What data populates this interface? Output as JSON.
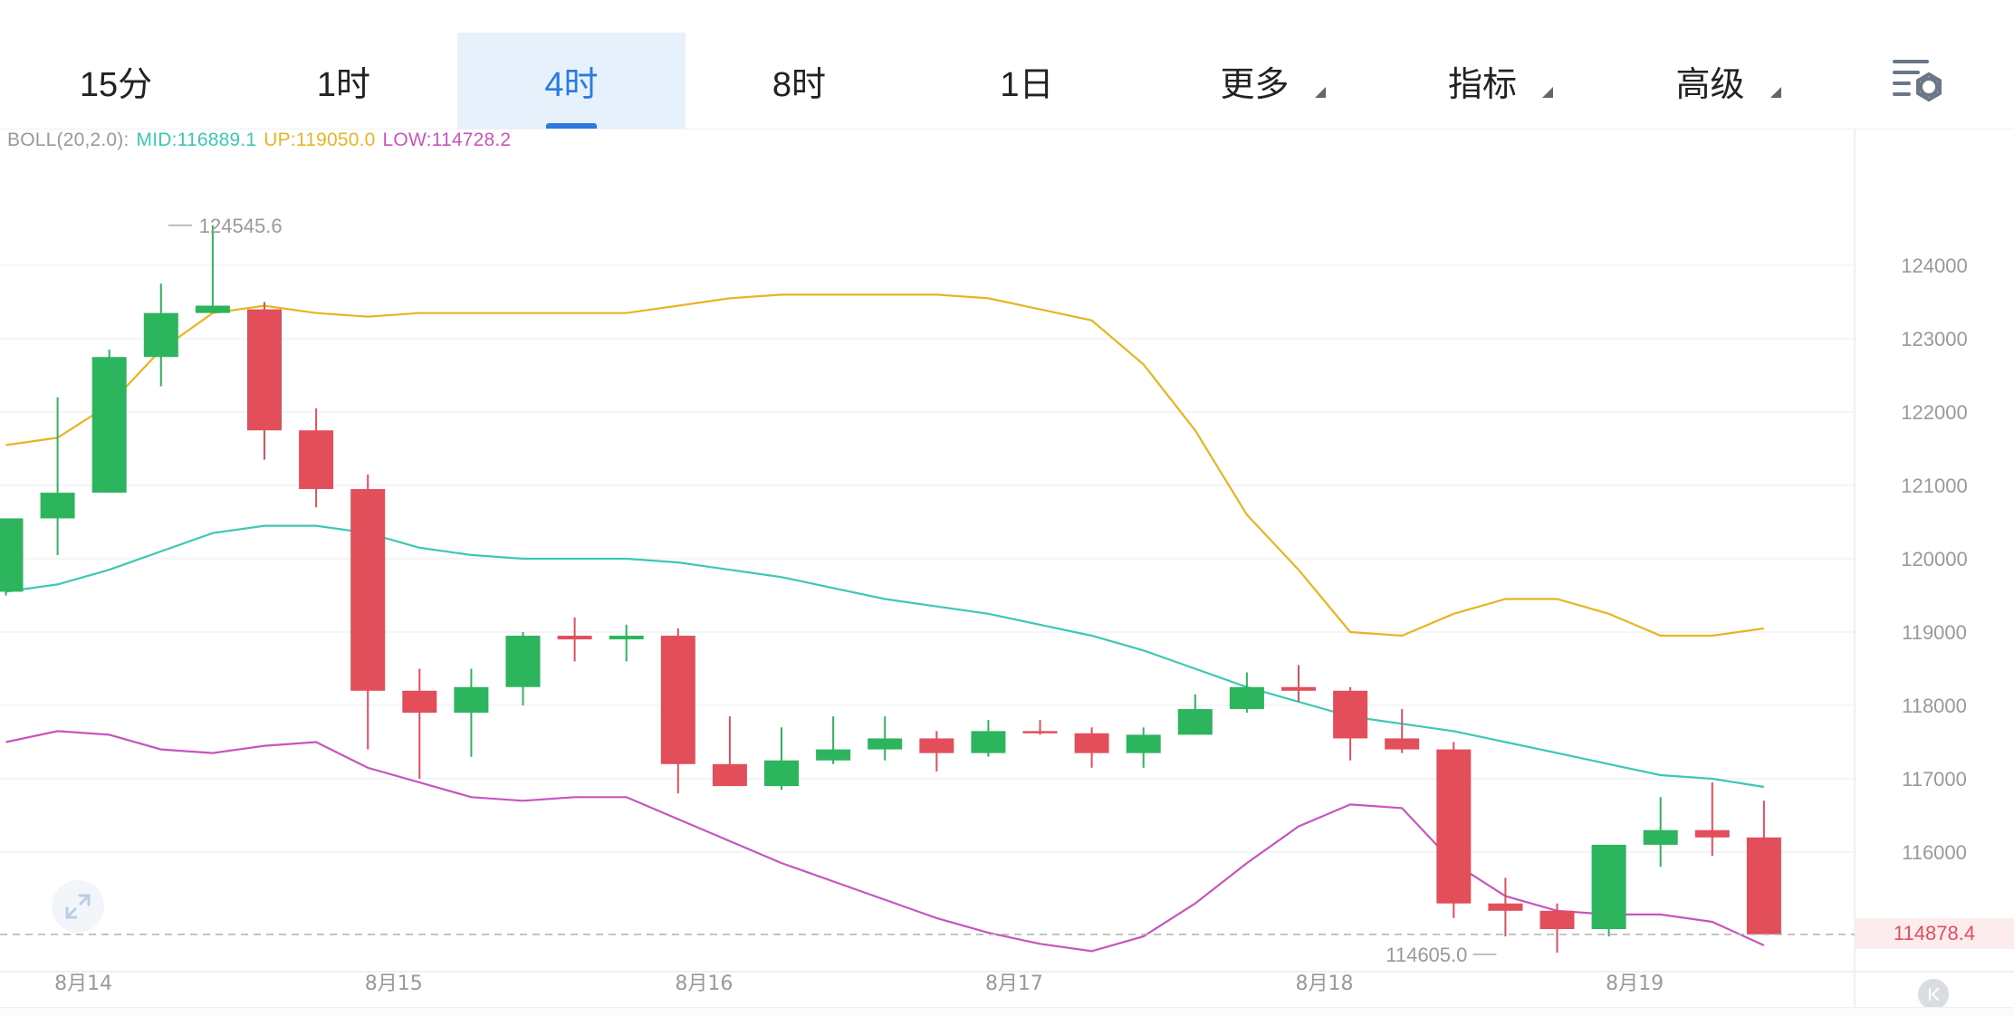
{
  "tabs": [
    {
      "label": "15分",
      "active": false,
      "dropdown": false
    },
    {
      "label": "1时",
      "active": false,
      "dropdown": false
    },
    {
      "label": "4时",
      "active": true,
      "dropdown": false
    },
    {
      "label": "8时",
      "active": false,
      "dropdown": false
    },
    {
      "label": "1日",
      "active": false,
      "dropdown": false
    },
    {
      "label": "更多",
      "active": false,
      "dropdown": true
    },
    {
      "label": "指标",
      "active": false,
      "dropdown": true
    },
    {
      "label": "高级",
      "active": false,
      "dropdown": true
    }
  ],
  "settings_icon": "chart-settings-icon",
  "legend": {
    "name": "BOLL(20,2.0):",
    "mid": "MID:116889.1",
    "up": "UP:119050.0",
    "low": "LOW:114728.2"
  },
  "current_price": "114878.4",
  "colors": {
    "up": "#2db55d",
    "down": "#e24f5b",
    "mid": "#3cc8b4",
    "upper": "#e8b521",
    "lower": "#c855bf",
    "accent": "#2a7ae2",
    "axis_text": "#999999"
  },
  "chart_data": {
    "type": "candlestick",
    "ylim": [
      114300,
      125800
    ],
    "yticks": [
      "124000",
      "123000",
      "122000",
      "121000",
      "120000",
      "119000",
      "118000",
      "117000",
      "116000"
    ],
    "ytick_values": [
      124000,
      123000,
      122000,
      121000,
      120000,
      119000,
      118000,
      117000,
      116000
    ],
    "x_labels": [
      {
        "label": "8月14",
        "index": 1.5
      },
      {
        "label": "8月15",
        "index": 7.5
      },
      {
        "label": "8月16",
        "index": 13.5
      },
      {
        "label": "8月17",
        "index": 19.5
      },
      {
        "label": "8月18",
        "index": 25.5
      },
      {
        "label": "8月19",
        "index": 31.5
      }
    ],
    "max_label": {
      "index": 3,
      "value": 124545.6,
      "label": "124545.6"
    },
    "min_label": {
      "index": 29,
      "value": 114605.0,
      "label": "114605.0"
    },
    "candles": [
      {
        "o": 119550,
        "h": 120550,
        "l": 119500,
        "c": 120550
      },
      {
        "o": 120550,
        "h": 122200,
        "l": 120050,
        "c": 120900
      },
      {
        "o": 120900,
        "h": 122850,
        "l": 120900,
        "c": 122750
      },
      {
        "o": 122750,
        "h": 123750,
        "l": 122350,
        "c": 123350
      },
      {
        "o": 123350,
        "h": 124545.6,
        "l": 123350,
        "c": 123450
      },
      {
        "o": 123400,
        "h": 123500,
        "l": 121350,
        "c": 121750
      },
      {
        "o": 121750,
        "h": 122050,
        "l": 120700,
        "c": 120950
      },
      {
        "o": 120950,
        "h": 121150,
        "l": 117400,
        "c": 118200
      },
      {
        "o": 118200,
        "h": 118500,
        "l": 117000,
        "c": 117900
      },
      {
        "o": 117900,
        "h": 118500,
        "l": 117300,
        "c": 118250
      },
      {
        "o": 118250,
        "h": 119000,
        "l": 118000,
        "c": 118950
      },
      {
        "o": 118950,
        "h": 119200,
        "l": 118600,
        "c": 118900
      },
      {
        "o": 118900,
        "h": 119100,
        "l": 118600,
        "c": 118950
      },
      {
        "o": 118950,
        "h": 119050,
        "l": 116800,
        "c": 117200
      },
      {
        "o": 117200,
        "h": 117850,
        "l": 116900,
        "c": 116900
      },
      {
        "o": 116900,
        "h": 117700,
        "l": 116850,
        "c": 117250
      },
      {
        "o": 117250,
        "h": 117850,
        "l": 117200,
        "c": 117400
      },
      {
        "o": 117400,
        "h": 117850,
        "l": 117250,
        "c": 117550
      },
      {
        "o": 117550,
        "h": 117650,
        "l": 117100,
        "c": 117350
      },
      {
        "o": 117350,
        "h": 117800,
        "l": 117300,
        "c": 117650
      },
      {
        "o": 117650,
        "h": 117800,
        "l": 117600,
        "c": 117620
      },
      {
        "o": 117620,
        "h": 117700,
        "l": 117150,
        "c": 117350
      },
      {
        "o": 117350,
        "h": 117700,
        "l": 117150,
        "c": 117600
      },
      {
        "o": 117600,
        "h": 118150,
        "l": 117600,
        "c": 117950
      },
      {
        "o": 117950,
        "h": 118450,
        "l": 117900,
        "c": 118250
      },
      {
        "o": 118250,
        "h": 118550,
        "l": 118050,
        "c": 118200
      },
      {
        "o": 118200,
        "h": 118250,
        "l": 117250,
        "c": 117550
      },
      {
        "o": 117550,
        "h": 117950,
        "l": 117350,
        "c": 117400
      },
      {
        "o": 117400,
        "h": 117500,
        "l": 115100,
        "c": 115300
      },
      {
        "o": 115300,
        "h": 115650,
        "l": 114850,
        "c": 115200
      },
      {
        "o": 115200,
        "h": 115300,
        "l": 114605.0,
        "c": 114950
      },
      {
        "o": 114950,
        "h": 116100,
        "l": 114850,
        "c": 116100
      },
      {
        "o": 116100,
        "h": 116750,
        "l": 115800,
        "c": 116300
      },
      {
        "o": 116300,
        "h": 116950,
        "l": 115950,
        "c": 116200
      },
      {
        "o": 116200,
        "h": 116700,
        "l": 114878.4,
        "c": 114878.4
      }
    ],
    "series": [
      {
        "name": "UP",
        "values": [
          121550,
          121650,
          122100,
          122850,
          123350,
          123450,
          123350,
          123300,
          123350,
          123350,
          123350,
          123350,
          123350,
          123450,
          123550,
          123600,
          123600,
          123600,
          123600,
          123550,
          123400,
          123250,
          122650,
          121750,
          120600,
          119850,
          119000,
          118950,
          119250,
          119450,
          119450,
          119250,
          118950,
          118950,
          119050
        ]
      },
      {
        "name": "MID",
        "values": [
          119550,
          119650,
          119850,
          120100,
          120350,
          120450,
          120450,
          120350,
          120150,
          120050,
          120000,
          120000,
          120000,
          119950,
          119850,
          119750,
          119600,
          119450,
          119350,
          119250,
          119100,
          118950,
          118750,
          118500,
          118250,
          118050,
          117850,
          117750,
          117650,
          117500,
          117350,
          117200,
          117050,
          117000,
          116889.1
        ]
      },
      {
        "name": "LOW",
        "values": [
          117500,
          117650,
          117600,
          117400,
          117350,
          117450,
          117500,
          117150,
          116950,
          116750,
          116700,
          116750,
          116750,
          116450,
          116150,
          115850,
          115600,
          115350,
          115100,
          114900,
          114750,
          114650,
          114850,
          115300,
          115850,
          116350,
          116650,
          116600,
          115850,
          115400,
          115200,
          115150,
          115150,
          115050,
          114728.2
        ]
      }
    ]
  }
}
